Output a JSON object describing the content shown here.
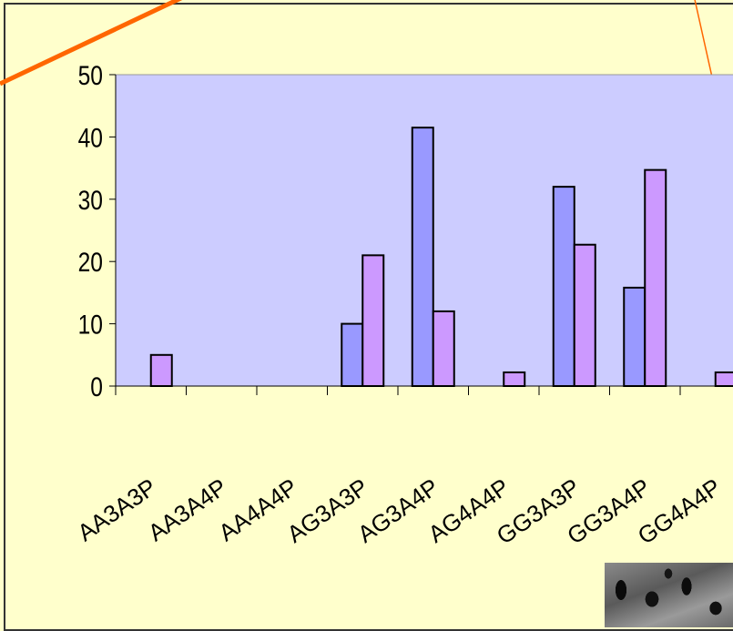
{
  "chart_data": {
    "type": "bar",
    "categories": [
      "AA3A3P",
      "AA3A4P",
      "AA4A4P",
      "AG3A3P",
      "AG3A4P",
      "AG4A4P",
      "GG3A3P",
      "GG3A4P",
      "GG4A4P"
    ],
    "series": [
      {
        "values": [
          0,
          0,
          0,
          10,
          41.5,
          0,
          32,
          15.8,
          0
        ]
      },
      {
        "values": [
          5,
          0,
          0,
          21,
          12,
          2.2,
          22.7,
          34.7,
          2.2
        ]
      }
    ],
    "ylim": [
      0,
      50
    ],
    "yticks": [
      0,
      10,
      20,
      30,
      40,
      50
    ],
    "grid": false,
    "colors": {
      "series1": "#9999ff",
      "series2": "#cc99ff",
      "plot_background": "#ccccff",
      "page_background": "#ffffcc",
      "decor_line": "#ff6600"
    }
  }
}
